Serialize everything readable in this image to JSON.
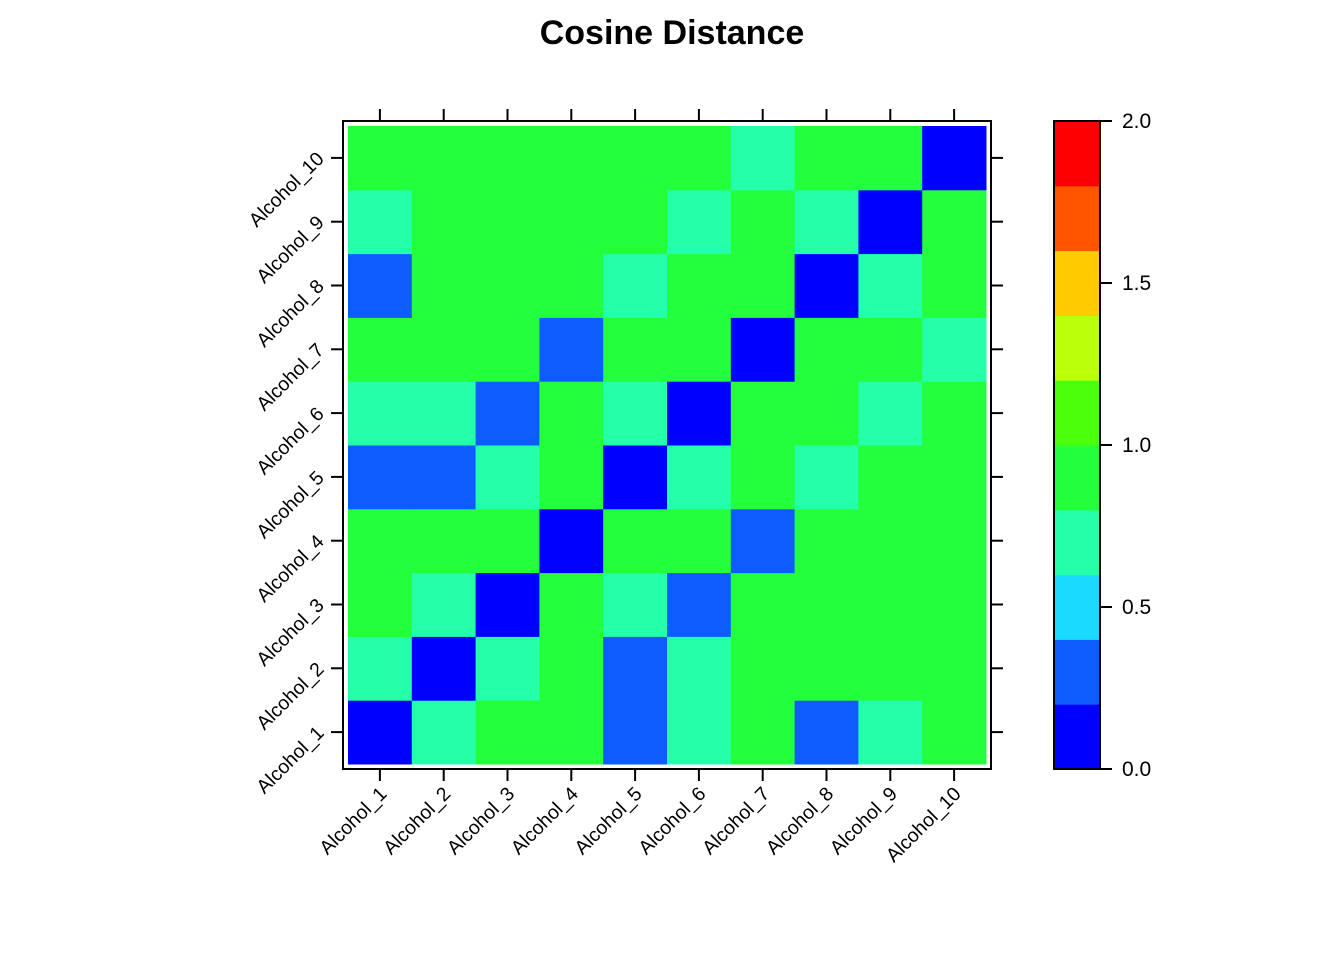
{
  "chart_data": {
    "type": "heatmap",
    "title": "Cosine Distance",
    "x_labels": [
      "Alcohol_1",
      "Alcohol_2",
      "Alcohol_3",
      "Alcohol_4",
      "Alcohol_5",
      "Alcohol_6",
      "Alcohol_7",
      "Alcohol_8",
      "Alcohol_9",
      "Alcohol_10"
    ],
    "y_labels": [
      "Alcohol_1",
      "Alcohol_2",
      "Alcohol_3",
      "Alcohol_4",
      "Alcohol_5",
      "Alcohol_6",
      "Alcohol_7",
      "Alcohol_8",
      "Alcohol_9",
      "Alcohol_10"
    ],
    "values": [
      [
        0.0,
        0.7,
        0.9,
        0.9,
        0.3,
        0.7,
        0.9,
        0.3,
        0.7,
        0.9
      ],
      [
        0.7,
        0.0,
        0.7,
        0.9,
        0.3,
        0.7,
        0.9,
        0.9,
        0.9,
        0.9
      ],
      [
        0.9,
        0.7,
        0.0,
        0.9,
        0.7,
        0.3,
        0.9,
        0.9,
        0.9,
        0.9
      ],
      [
        0.9,
        0.9,
        0.9,
        0.0,
        0.9,
        0.9,
        0.3,
        0.9,
        0.9,
        0.9
      ],
      [
        0.3,
        0.3,
        0.7,
        0.9,
        0.0,
        0.7,
        0.9,
        0.7,
        0.9,
        0.9
      ],
      [
        0.7,
        0.7,
        0.3,
        0.9,
        0.7,
        0.0,
        0.9,
        0.9,
        0.7,
        0.9
      ],
      [
        0.9,
        0.9,
        0.9,
        0.3,
        0.9,
        0.9,
        0.0,
        0.9,
        0.9,
        0.7
      ],
      [
        0.3,
        0.9,
        0.9,
        0.9,
        0.7,
        0.9,
        0.9,
        0.0,
        0.7,
        0.9
      ],
      [
        0.7,
        0.9,
        0.9,
        0.9,
        0.9,
        0.7,
        0.9,
        0.7,
        0.0,
        0.9
      ],
      [
        0.9,
        0.9,
        0.9,
        0.9,
        0.9,
        0.9,
        0.7,
        0.9,
        0.9,
        0.0
      ]
    ],
    "colorbar": {
      "range": [
        0.0,
        2.0
      ],
      "ticks": [
        0.0,
        0.5,
        1.0,
        1.5,
        2.0
      ],
      "tick_labels": [
        "0.0",
        "0.5",
        "1.0",
        "1.5",
        "2.0"
      ],
      "bin_edges": [
        0.0,
        0.2,
        0.4,
        0.6,
        0.8,
        1.0,
        1.2,
        1.4,
        1.6,
        1.8,
        2.0
      ],
      "colors": [
        "#0000FF",
        "#0D5CFF",
        "#1ADBFF",
        "#24FFAA",
        "#24FF3D",
        "#4CFF0A",
        "#BBFF0A",
        "#FFCC00",
        "#FF5500",
        "#FF0000"
      ]
    }
  }
}
